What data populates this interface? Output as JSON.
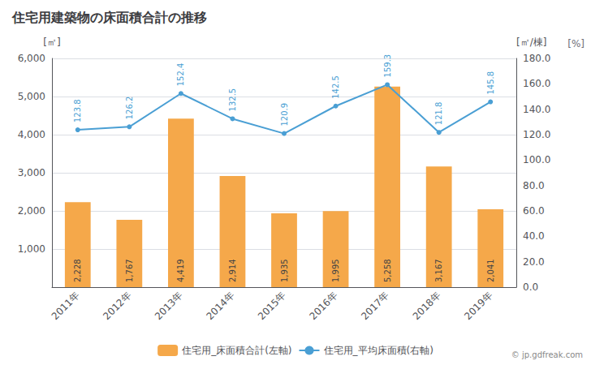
{
  "chart_data": {
    "type": "bar",
    "title": "住宅用建築物の床面積合計の推移",
    "categories": [
      "2011年",
      "2012年",
      "2013年",
      "2014年",
      "2015年",
      "2016年",
      "2017年",
      "2018年",
      "2019年"
    ],
    "series": [
      {
        "name": "住宅用_床面積合計(左軸)",
        "type": "bar",
        "color": "#f5a84a",
        "values": [
          2228,
          1767,
          4419,
          2914,
          1935,
          1995,
          5258,
          3167,
          2041
        ],
        "value_labels": [
          "2,228",
          "1,767",
          "4,419",
          "2,914",
          "1,935",
          "1,995",
          "5,258",
          "3,167",
          "2,041"
        ]
      },
      {
        "name": "住宅用_平均床面積(右軸)",
        "type": "line",
        "color": "#4a9fd4",
        "axis": "y2",
        "marker": "circle",
        "values": [
          123.8,
          126.2,
          152.4,
          132.5,
          120.9,
          142.5,
          159.3,
          121.8,
          145.8
        ]
      }
    ],
    "ylabel": "[㎡]",
    "y2label": "[㎡/棟]",
    "annotations": [
      "[%]",
      "© jp.gdfreak.com"
    ],
    "ylim": [
      0,
      6000
    ],
    "yticks": [
      {
        "value": 0,
        "label": null
      },
      {
        "value": 1000,
        "label": "1,000"
      },
      {
        "value": 2000,
        "label": "2,000"
      },
      {
        "value": 3000,
        "label": "3,000"
      },
      {
        "value": 4000,
        "label": "4,000"
      },
      {
        "value": 5000,
        "label": "5,000"
      },
      {
        "value": 6000,
        "label": "6,000"
      }
    ],
    "y2lim": [
      0,
      180
    ],
    "y2ticks": [
      {
        "value": 0,
        "label": "0.0"
      },
      {
        "value": 20,
        "label": "20.0"
      },
      {
        "value": 40,
        "label": "40.0"
      },
      {
        "value": 60,
        "label": "60.0"
      },
      {
        "value": 80,
        "label": "80.0"
      },
      {
        "value": 100,
        "label": "100.0"
      },
      {
        "value": 120,
        "label": "120.0"
      },
      {
        "value": 140,
        "label": "140.0"
      },
      {
        "value": 160,
        "label": "160.0"
      },
      {
        "value": 180,
        "label": "180.0"
      }
    ],
    "grid": true,
    "legend": "bottom",
    "data_labels": true
  }
}
